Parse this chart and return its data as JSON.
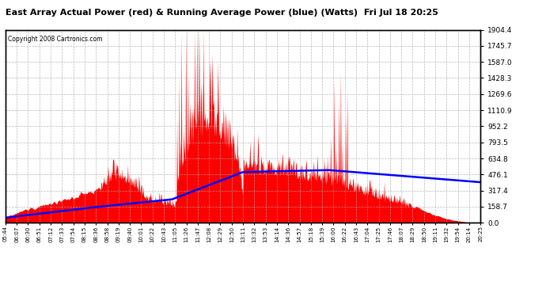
{
  "title": "East Array Actual Power (red) & Running Average Power (blue) (Watts)  Fri Jul 18 20:25",
  "copyright": "Copyright 2008 Cartronics.com",
  "yticks": [
    0.0,
    158.7,
    317.4,
    476.1,
    634.8,
    793.5,
    952.2,
    1110.9,
    1269.6,
    1428.3,
    1587.0,
    1745.7,
    1904.4
  ],
  "ymax": 1904.4,
  "ymin": 0.0,
  "bg_color": "#ffffff",
  "plot_bg_color": "#ffffff",
  "actual_color": "#ff0000",
  "avg_color": "#0000ff",
  "grid_color": "#aaaaaa",
  "title_color": "#000000",
  "tick_color": "#000000",
  "border_color": "#000000",
  "xtick_labels": [
    "05:44",
    "06:07",
    "06:30",
    "06:51",
    "07:12",
    "07:33",
    "07:54",
    "08:15",
    "08:36",
    "08:58",
    "09:19",
    "09:40",
    "10:01",
    "10:22",
    "10:43",
    "11:05",
    "11:26",
    "11:47",
    "12:08",
    "12:29",
    "12:50",
    "13:11",
    "13:32",
    "13:53",
    "14:14",
    "14:36",
    "14:57",
    "15:18",
    "15:39",
    "16:00",
    "16:22",
    "16:43",
    "17:04",
    "17:25",
    "17:46",
    "18:07",
    "18:29",
    "18:50",
    "19:11",
    "19:32",
    "19:54",
    "20:14",
    "20:25"
  ]
}
